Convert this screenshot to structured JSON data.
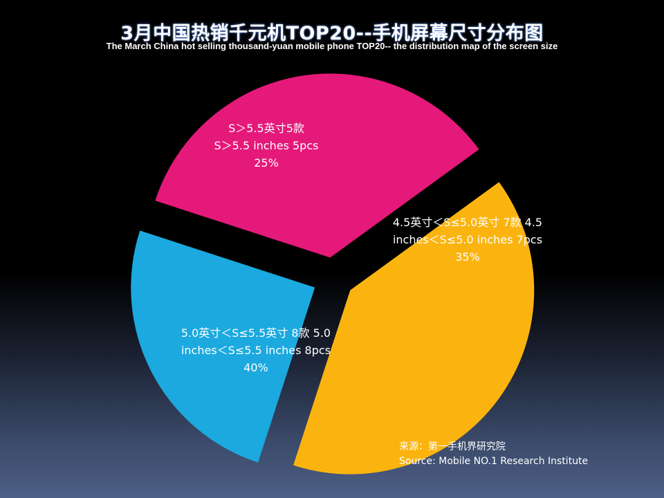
{
  "title": "3月中国热销千元机TOP20--手机屏幕尺寸分布图",
  "subtitle": "The March China hot selling thousand-yuan mobile phone TOP20-- the distribution map of the screen size",
  "chart_data": {
    "type": "pie",
    "categories": [
      "4.5英寸＜S≤5.0英寸 7款",
      "5.0英寸＜S≤5.5英寸 8款",
      "S＞5.5英寸5款"
    ],
    "values": [
      35,
      40,
      25
    ],
    "colors": [
      "#e5197a",
      "#fbb40f",
      "#1ba9df"
    ],
    "labels": [
      [
        "4.5英寸＜S≤5.0英寸 7款 4.5",
        "inches＜S≤5.0 inches 7pcs",
        "35%"
      ],
      [
        "5.0英寸＜S≤5.5英寸 8款 5.0",
        "inches＜S≤5.5 inches 8pcs",
        "40%"
      ],
      [
        "S＞5.5英寸5款",
        "S＞5.5 inches 5pcs",
        "25%"
      ]
    ]
  },
  "source": {
    "line1": "来源：第一手机界研究院",
    "line2": "Source: Mobile NO.1 Research Institute"
  }
}
